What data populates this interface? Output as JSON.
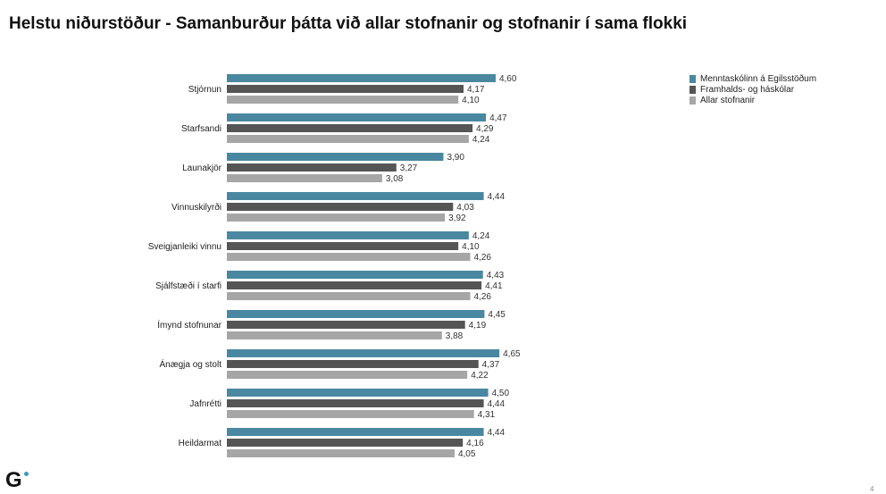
{
  "title": "Helstu niðurstöður - Samanburður þátta við allar stofnanir og stofnanir í sama flokki",
  "page_number": "4",
  "logo": "G",
  "chart_data": {
    "type": "bar",
    "orientation": "horizontal",
    "categories": [
      "Stjórnun",
      "Starfsandi",
      "Launakjör",
      "Vinnuskilyrði",
      "Sveigjanleiki vinnu",
      "Sjálfstæði í starfi",
      "Ímynd stofnunar",
      "Ánægja og stolt",
      "Jafnrétti",
      "Heildarmat"
    ],
    "series": [
      {
        "name": "Menntaskólinn á Egilsstöðum",
        "color": "#4a87a0",
        "values": [
          4.6,
          4.47,
          3.9,
          4.44,
          4.24,
          4.43,
          4.45,
          4.65,
          4.5,
          4.44
        ],
        "labels": [
          "4,60",
          "4,47",
          "3,90",
          "4,44",
          "4,24",
          "4,43",
          "4,45",
          "4,65",
          "4,50",
          "4,44"
        ]
      },
      {
        "name": "Framhalds- og háskólar",
        "color": "#555555",
        "values": [
          4.17,
          4.29,
          3.27,
          4.03,
          4.1,
          4.41,
          4.19,
          4.37,
          4.44,
          4.16
        ],
        "labels": [
          "4,17",
          "4,29",
          "3,27",
          "4,03",
          "4,10",
          "4,41",
          "4,19",
          "4,37",
          "4,44",
          "4,16"
        ]
      },
      {
        "name": "Allar stofnanir",
        "color": "#a6a6a6",
        "values": [
          4.1,
          4.24,
          3.08,
          3.92,
          4.26,
          4.26,
          3.88,
          4.22,
          4.31,
          4.05
        ],
        "labels": [
          "4,10",
          "4,24",
          "3,08",
          "3,92",
          "4,26",
          "4,26",
          "3,88",
          "4,22",
          "4,31",
          "4,05"
        ]
      }
    ],
    "xlim": [
      1,
      5
    ],
    "grid": false,
    "legend_position": "top-right"
  }
}
